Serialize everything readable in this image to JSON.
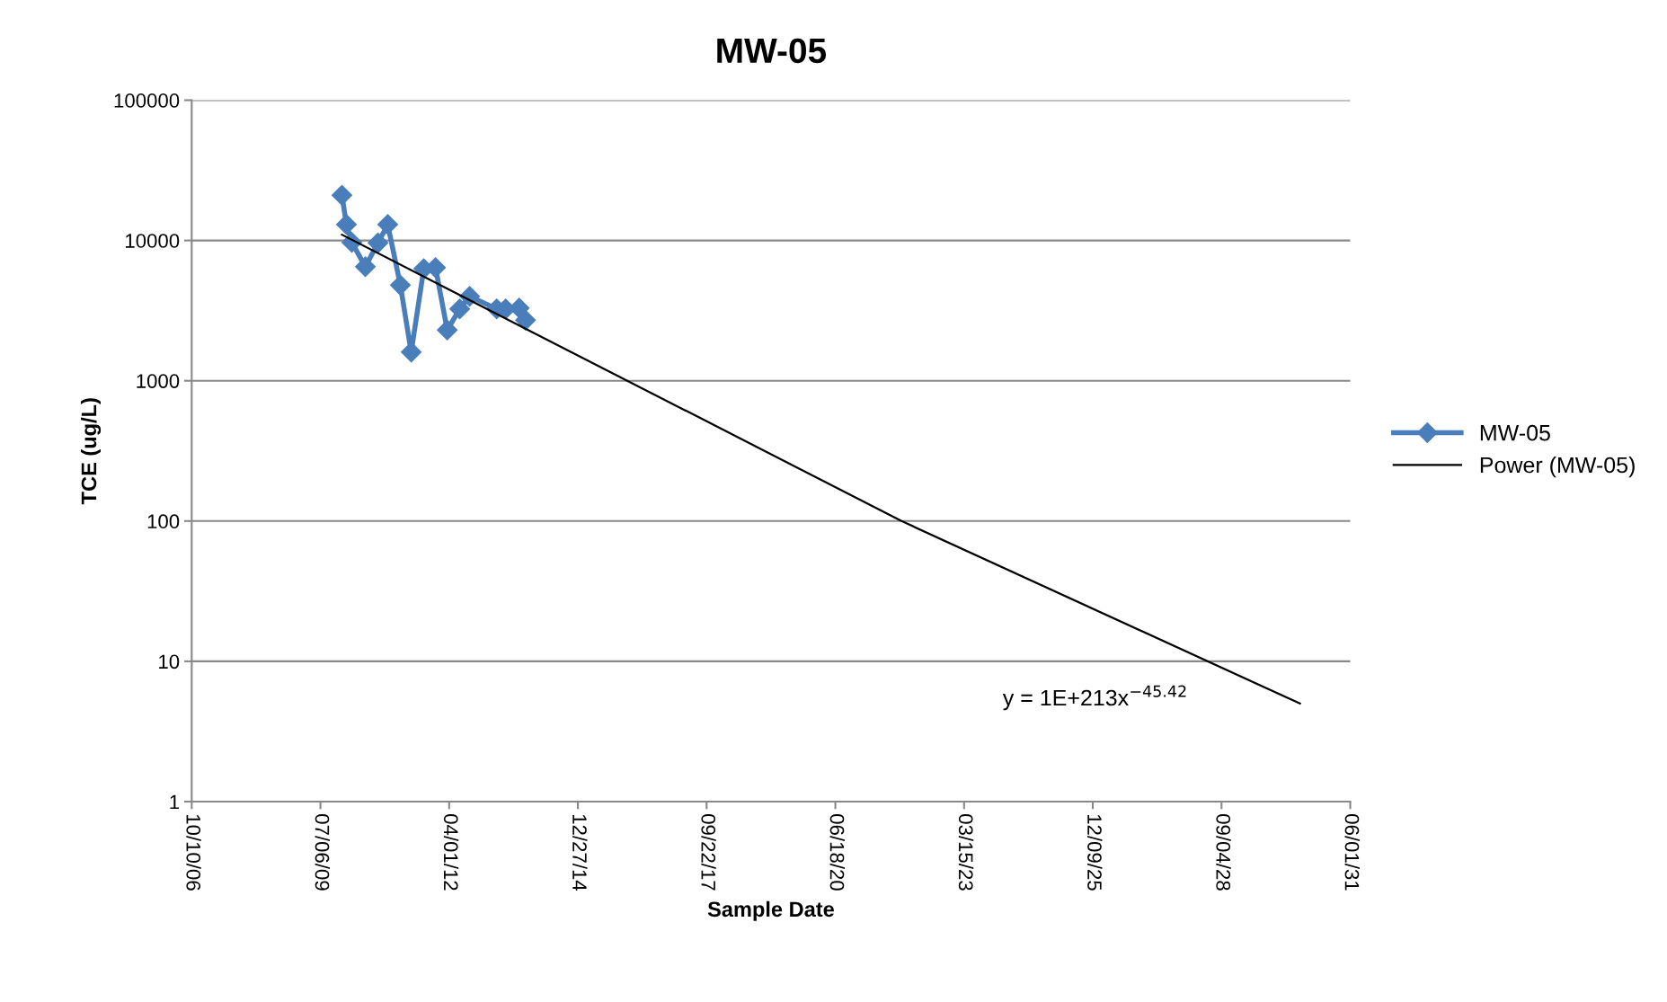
{
  "chart_data": {
    "type": "line",
    "title": "MW-05",
    "xlabel": "Sample Date",
    "ylabel": "TCE (ug/L)",
    "log": "y",
    "grid": "y",
    "legend": "right",
    "xlim": [
      "2006-10-10",
      "2031-06-01"
    ],
    "xticks": [
      {
        "value": "2006-10-10",
        "label": "10/10/06"
      },
      {
        "value": "2009-07-06",
        "label": "07/06/09"
      },
      {
        "value": "2012-04-01",
        "label": "04/01/12"
      },
      {
        "value": "2014-12-27",
        "label": "12/27/14"
      },
      {
        "value": "2017-09-22",
        "label": "09/22/17"
      },
      {
        "value": "2020-06-18",
        "label": "06/18/20"
      },
      {
        "value": "2023-03-15",
        "label": "03/15/23"
      },
      {
        "value": "2025-12-09",
        "label": "12/09/25"
      },
      {
        "value": "2028-09-04",
        "label": "09/04/28"
      },
      {
        "value": "2031-06-01",
        "label": "06/01/31"
      }
    ],
    "ylim": [
      1,
      100000
    ],
    "yticks": [
      1,
      10,
      100,
      1000,
      10000,
      100000
    ],
    "series": [
      {
        "name": "MW-05",
        "color": "#4a7ebb",
        "marker": "diamond",
        "x": [
          "2009-12-20",
          "2010-01-24",
          "2010-03-07",
          "2010-06-20",
          "2010-09-26",
          "2010-12-11",
          "2011-03-19",
          "2011-06-11",
          "2011-09-17",
          "2011-12-17",
          "2012-03-17",
          "2012-06-22",
          "2012-09-07",
          "2013-04-05",
          "2013-06-14",
          "2013-09-27",
          "2013-11-15"
        ],
        "values": [
          21000,
          13000,
          9700,
          6500,
          9600,
          13000,
          4800,
          1600,
          6300,
          6400,
          2300,
          3250,
          4000,
          3250,
          3250,
          3300,
          2700
        ]
      },
      {
        "name": "Power (MW-05)",
        "color": "#000000",
        "marker": "none",
        "x": [
          "2009-12-20",
          "2021-11-14",
          "2030-05-06"
        ],
        "values": [
          11000,
          100,
          5
        ]
      }
    ],
    "annotations": [
      "y = 1E+213x$^{−45.42}$"
    ]
  }
}
